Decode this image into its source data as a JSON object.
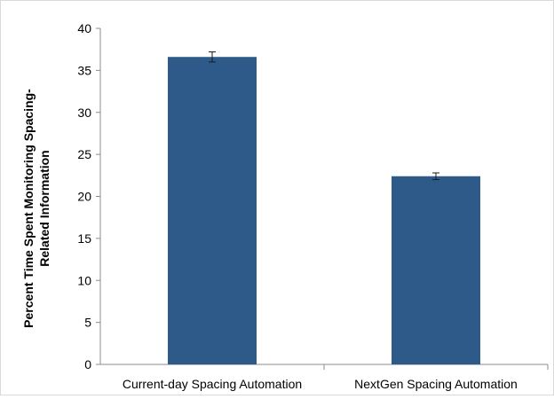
{
  "chart_data": {
    "type": "bar",
    "title": "",
    "xlabel": "",
    "ylabel": "Percent Time Spent Monitoring Spacing-Related Information",
    "ylabel_lines": [
      "Percent Time Spent Monitoring Spacing-",
      "Related Information"
    ],
    "categories": [
      "Current-day Spacing Automation",
      "NextGen Spacing Automation"
    ],
    "values": [
      36.6,
      22.4
    ],
    "error": [
      0.6,
      0.4
    ],
    "ylim": [
      0,
      40
    ],
    "yticks": [
      0,
      5,
      10,
      15,
      20,
      25,
      30,
      35,
      40
    ],
    "grid": false,
    "legend": "none",
    "colors": {
      "bar": "#2e5a8a",
      "axis": "#8c8c8c",
      "text": "#000000",
      "errorbar": "#1a1a1a"
    }
  }
}
